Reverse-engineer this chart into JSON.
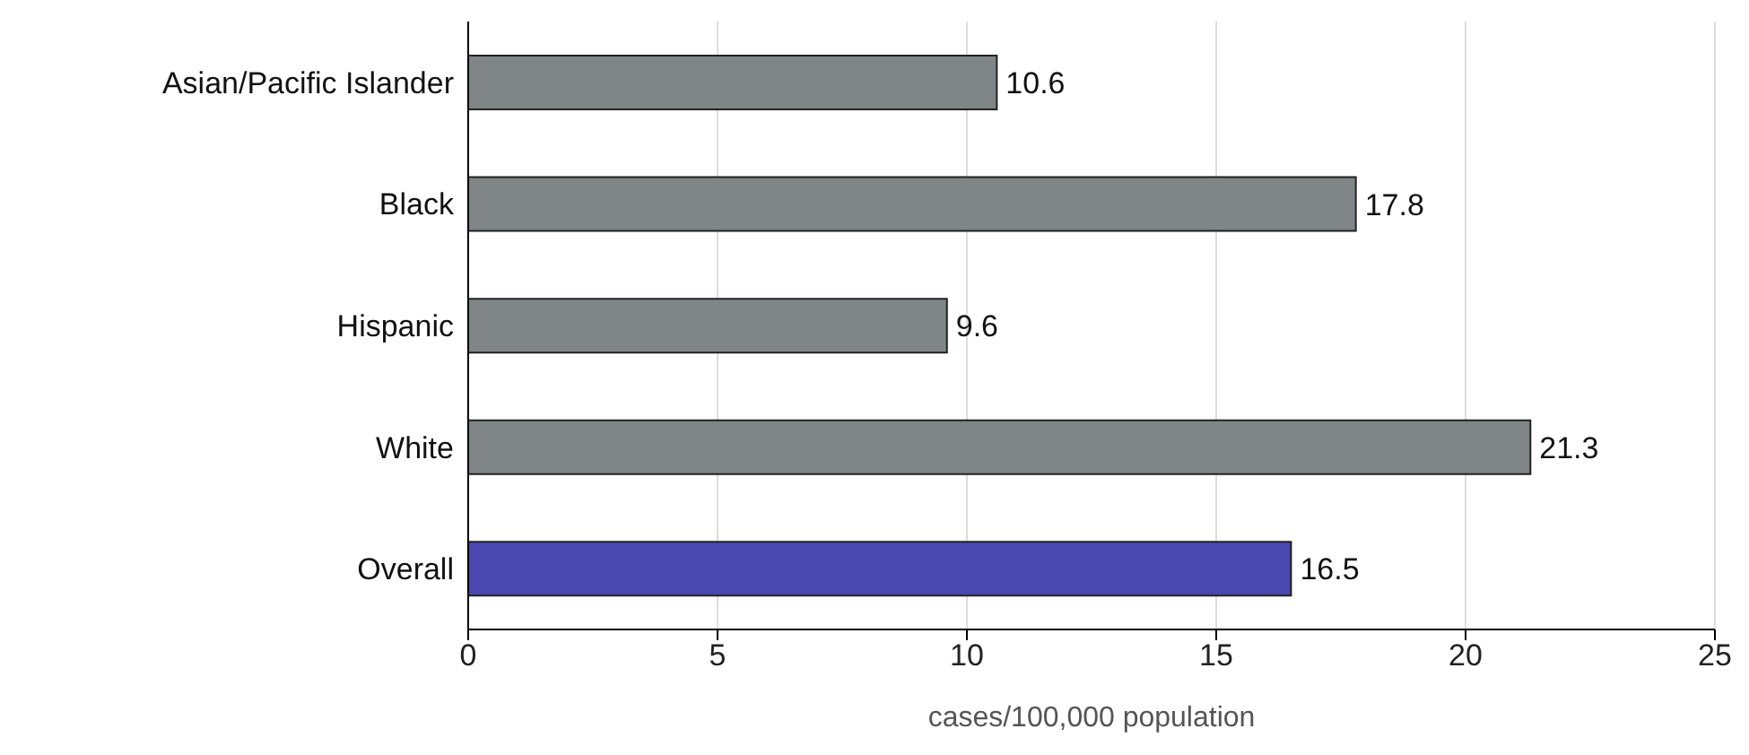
{
  "chart_data": {
    "type": "bar",
    "orientation": "horizontal",
    "xlabel": "cases/100,000 population",
    "categories": [
      "Asian/Pacific Islander",
      "Black",
      "Hispanic",
      "White",
      "Overall"
    ],
    "values": [
      10.6,
      17.8,
      9.6,
      21.3,
      16.5
    ],
    "colors": [
      "#808587",
      "#808587",
      "#808587",
      "#808587",
      "#4848b0"
    ],
    "xlim": [
      0,
      25
    ],
    "xticks": [
      0,
      5,
      10,
      15,
      20,
      25
    ],
    "grid": "x",
    "data_labels": true
  }
}
